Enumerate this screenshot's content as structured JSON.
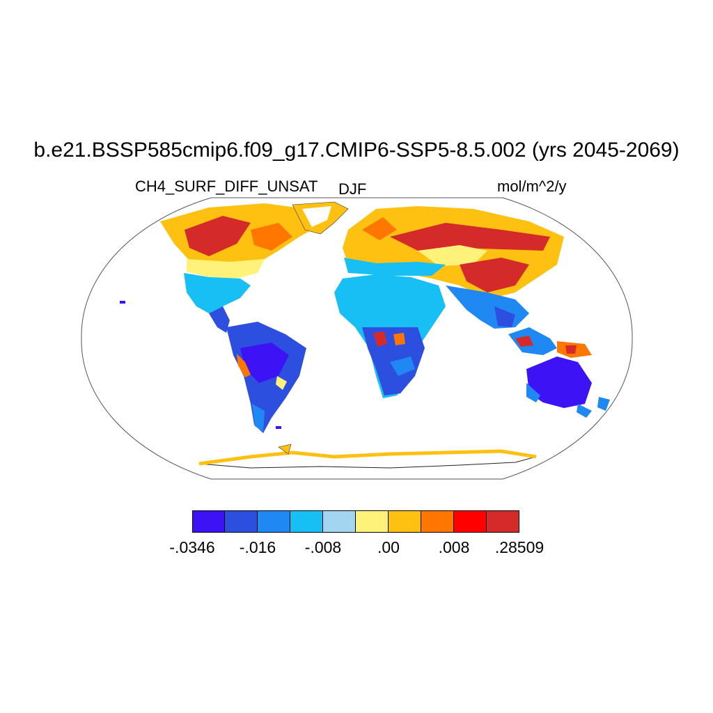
{
  "title": "b.e21.BSSP585cmip6.f09_g17.CMIP6-SSP5-8.5.002 (yrs 2045-2069)",
  "variable_label": "CH4_SURF_DIFF_UNSAT",
  "season_label": "DJF",
  "units_label": "mol/m^2/y",
  "projection": "Robinson",
  "colorbar": {
    "colors": [
      "#3d12f5",
      "#2d4fe0",
      "#1f88f2",
      "#18bff5",
      "#a3d5f0",
      "#fff27a",
      "#ffc111",
      "#ff7600",
      "#ff0000",
      "#d42a2a"
    ],
    "labels": [
      {
        "text": "-.0346",
        "boundary": 0
      },
      {
        "text": "-.016",
        "boundary": 2
      },
      {
        "text": "-.008",
        "boundary": 4
      },
      {
        "text": ".00",
        "boundary": 6
      },
      {
        "text": ".008",
        "boundary": 8
      },
      {
        "text": ".28509",
        "boundary": 10
      }
    ]
  }
}
